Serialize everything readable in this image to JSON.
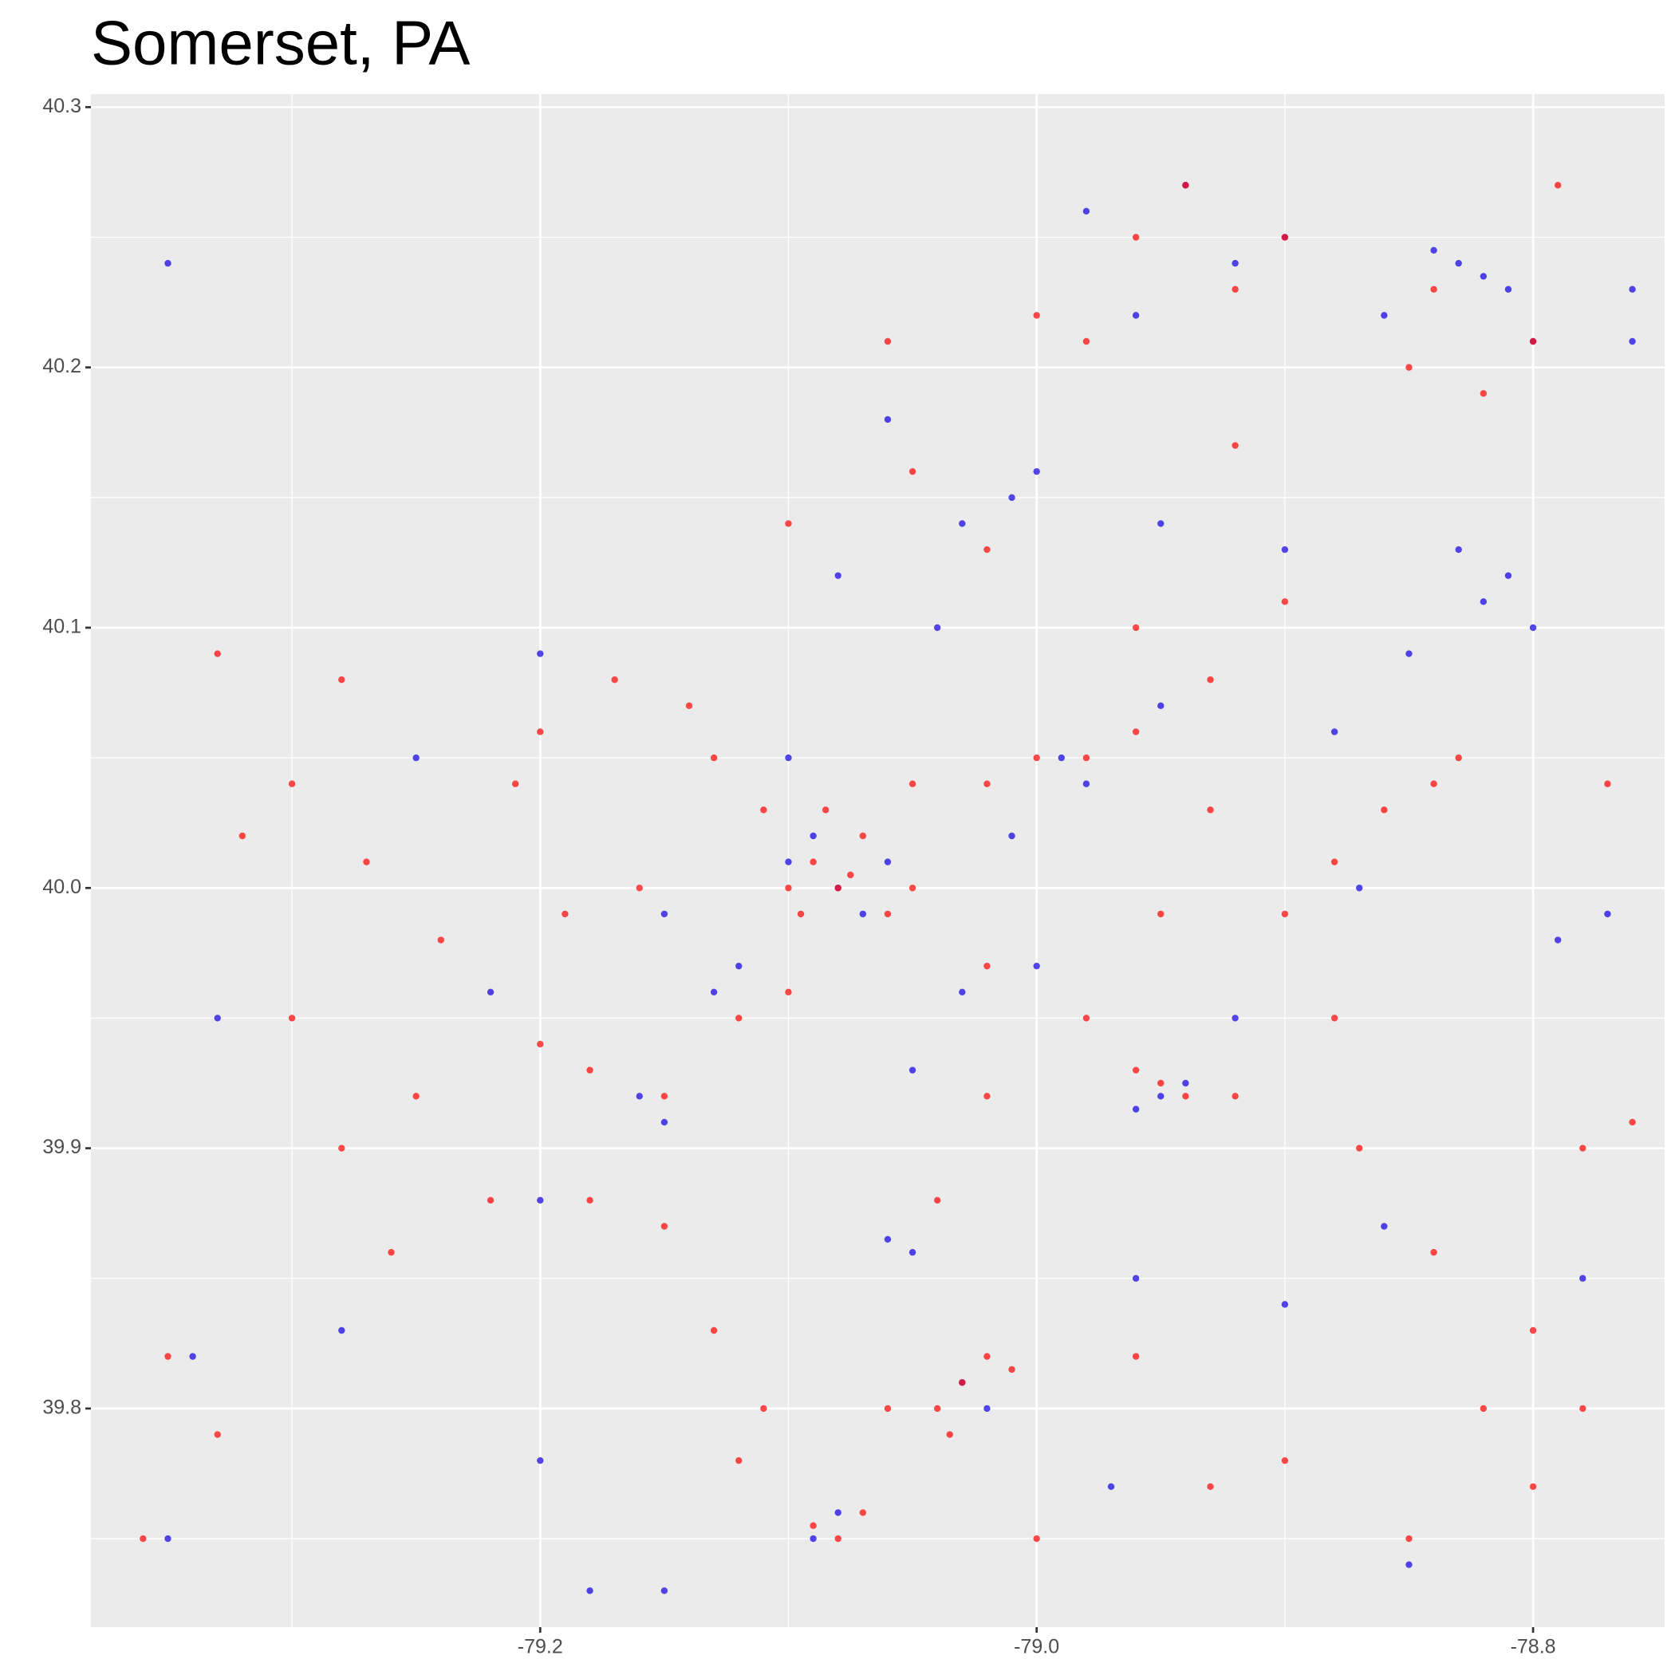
{
  "chart_data": {
    "type": "scatter",
    "title": "Somerset, PA",
    "xlim": [
      -79.381,
      -78.747
    ],
    "ylim": [
      39.716,
      40.305
    ],
    "xticks": [
      -79.2,
      {
        "value": -79,
        "label": "-79.0"
      },
      -78.8
    ],
    "yticks": [
      39.8,
      39.9,
      {
        "value": 40,
        "label": "40.0"
      },
      40.1,
      40.2,
      40.3
    ],
    "x_minor_breaks": [
      -79.3,
      -79.1,
      -78.9
    ],
    "y_minor_breaks": [
      39.75,
      39.85,
      39.95,
      40.05,
      40.15,
      40.25
    ],
    "grid": true,
    "opacity": 0.75,
    "series": [
      {
        "color": "#1a0ae6",
        "x": [
          -79.08,
          -79.09,
          -79.07,
          -79.1,
          -79.06,
          -79.0,
          -79.03,
          -79.01,
          -78.98,
          -78.99,
          -79.01,
          -78.95,
          -78.94,
          -78.96,
          -79.15,
          -79.16,
          -79.03,
          -79.02,
          -79.05,
          -79.06,
          -78.83,
          -78.82,
          -78.84,
          -78.81,
          -78.86,
          -78.8,
          -78.82,
          -78.81,
          -78.83,
          -78.8,
          -78.9,
          -78.92,
          -78.94,
          -78.96,
          -78.98,
          -79.08,
          -79.06,
          -79.04,
          -79.1,
          -79.2,
          -79.25,
          -79.35,
          -79.35,
          -79.33,
          -79.34,
          -79.28,
          -79.2,
          -79.22,
          -79.18,
          -79.08,
          -79.09,
          -78.97,
          -78.9,
          -78.86,
          -78.85,
          -78.78,
          -78.77,
          -78.79,
          -78.76,
          -78.76,
          -78.88,
          -78.87,
          -78.92,
          -78.95,
          -78.95,
          -78.9,
          -78.85,
          -79.0,
          -79.12,
          -79.13,
          -79.15,
          -79.05,
          -79.03,
          -78.96,
          -79.15,
          -79.2
        ],
        "values": [
          40.0,
          40.02,
          39.99,
          40.01,
          40.01,
          40.16,
          40.14,
          40.15,
          40.04,
          40.05,
          40.02,
          39.92,
          39.925,
          39.915,
          39.91,
          39.92,
          39.81,
          39.8,
          39.86,
          39.865,
          40.24,
          40.235,
          40.245,
          40.23,
          40.22,
          40.21,
          40.11,
          40.12,
          40.13,
          40.1,
          40.25,
          40.24,
          40.27,
          40.22,
          40.26,
          40.12,
          40.18,
          40.1,
          40.05,
          40.09,
          40.05,
          40.24,
          39.75,
          39.95,
          39.82,
          39.83,
          39.88,
          39.96,
          39.73,
          39.76,
          39.75,
          39.77,
          39.84,
          39.87,
          39.74,
          39.85,
          39.99,
          39.98,
          40.23,
          40.21,
          40.06,
          40.0,
          39.95,
          40.07,
          40.14,
          40.13,
          40.09,
          39.97,
          39.97,
          39.96,
          39.99,
          39.93,
          39.96,
          39.85,
          39.73,
          39.78
        ]
      },
      {
        "color": "#ff0d0d",
        "x": [
          -79.09,
          -79.08,
          -79.07,
          -79.1,
          -79.06,
          -79.05,
          -79.11,
          -79.085,
          -79.095,
          -79.075,
          -79.0,
          -78.98,
          -79.02,
          -79.05,
          -78.96,
          -79.03,
          -79.02,
          -79.04,
          -79.01,
          -79.035,
          -78.95,
          -78.94,
          -78.96,
          -78.92,
          -79.15,
          -79.2,
          -79.18,
          -79.1,
          -79.12,
          -79.08,
          -79.09,
          -79.07,
          -79.36,
          -79.35,
          -79.33,
          -79.28,
          -79.25,
          -79.3,
          -79.22,
          -79.26,
          -79.21,
          -79.2,
          -79.17,
          -79.14,
          -79.13,
          -79.16,
          -79.19,
          -79.24,
          -79.27,
          -79.32,
          -79.1,
          -79.05,
          -79.02,
          -79.06,
          -79.0,
          -78.98,
          -78.96,
          -78.92,
          -78.9,
          -78.94,
          -78.84,
          -78.8,
          -78.82,
          -78.85,
          -78.84,
          -78.86,
          -78.88,
          -78.9,
          -78.83,
          -78.88,
          -78.87,
          -78.84,
          -78.8,
          -78.78,
          -78.76,
          -78.9,
          -78.93,
          -78.96,
          -78.85,
          -78.82,
          -78.8,
          -78.78,
          -79.13,
          -79.11,
          -79.12,
          -79.06,
          -79.0,
          -79.04,
          -79.02,
          -79.02,
          -78.98,
          -78.95,
          -78.93,
          -78.96,
          -78.93,
          -78.9,
          -78.92,
          -79.15,
          -79.18,
          -79.33,
          -79.28,
          -79.3,
          -78.77,
          -78.79
        ],
        "values": [
          40.01,
          40.0,
          40.02,
          40.0,
          39.99,
          40.0,
          40.03,
          40.03,
          39.99,
          40.005,
          40.05,
          40.05,
          40.04,
          40.04,
          40.06,
          39.81,
          39.82,
          39.8,
          39.815,
          39.79,
          39.925,
          39.92,
          39.93,
          39.92,
          39.92,
          39.94,
          39.93,
          39.96,
          39.95,
          39.75,
          39.755,
          39.76,
          39.75,
          39.82,
          39.79,
          39.9,
          39.92,
          39.95,
          39.88,
          39.86,
          40.04,
          40.06,
          40.08,
          40.07,
          40.05,
          40.0,
          39.99,
          39.98,
          40.01,
          40.02,
          40.14,
          40.16,
          40.13,
          40.21,
          40.22,
          40.21,
          40.25,
          40.23,
          40.25,
          40.27,
          40.23,
          40.21,
          40.19,
          40.2,
          40.04,
          40.03,
          40.01,
          39.99,
          40.05,
          39.95,
          39.9,
          39.86,
          39.83,
          39.9,
          39.91,
          39.78,
          39.77,
          39.82,
          39.75,
          39.8,
          39.77,
          39.8,
          39.83,
          39.8,
          39.78,
          39.8,
          39.75,
          39.88,
          39.92,
          39.97,
          39.95,
          39.99,
          40.03,
          40.1,
          40.08,
          40.11,
          40.17,
          39.87,
          39.88,
          40.09,
          40.08,
          40.04,
          40.04,
          40.27
        ]
      }
    ]
  }
}
